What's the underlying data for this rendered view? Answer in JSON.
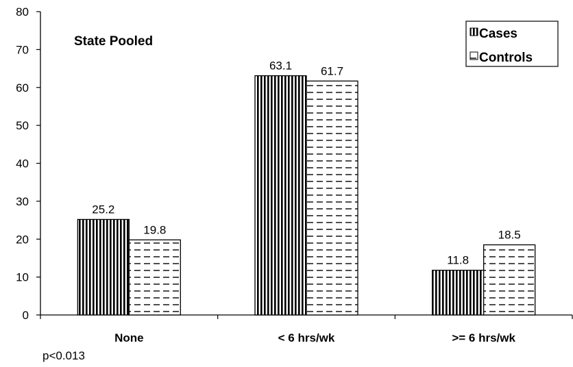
{
  "chart_data": {
    "type": "bar",
    "title": "State Pooled",
    "categories": [
      "None",
      "< 6 hrs/wk",
      ">= 6 hrs/wk"
    ],
    "series": [
      {
        "name": "Cases",
        "values": [
          25.2,
          63.1,
          11.8
        ],
        "pattern": "vertical-stripes"
      },
      {
        "name": "Controls",
        "values": [
          19.8,
          61.7,
          18.5
        ],
        "pattern": "horizontal-dashes"
      }
    ],
    "ylim": [
      0,
      80
    ],
    "yticks": [
      0,
      10,
      20,
      30,
      40,
      50,
      60,
      70,
      80
    ],
    "grid": false,
    "legend_position": "top-right",
    "xlabel": "",
    "ylabel": ""
  },
  "footnote": "p<0.013",
  "colors": {
    "bar_stroke": "#000000",
    "pattern_ink": "#000000",
    "background": "#ffffff"
  }
}
